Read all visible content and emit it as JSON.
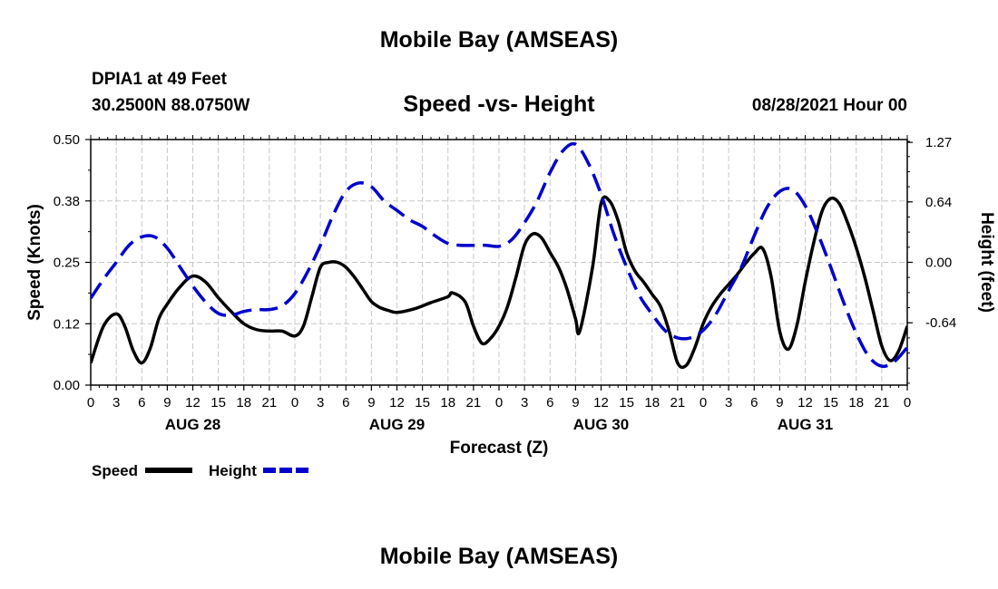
{
  "header": {
    "title": "Mobile Bay (AMSEAS)",
    "station": "DPIA1 at 49 Feet",
    "coordinates": "30.2500N  88.0750W",
    "datetime": "08/28/2021 Hour 00"
  },
  "footer": {
    "title": "Mobile Bay (AMSEAS)"
  },
  "chart_data": {
    "type": "line",
    "title": "Speed -vs- Height",
    "xlabel": "Forecast (Z)",
    "ylabel": "Speed (Knots)",
    "y2label": "Height (feet)",
    "xlim": [
      0,
      96
    ],
    "ylim": [
      0,
      0.5
    ],
    "y2lim": [
      -1.3,
      1.3
    ],
    "yticks": [
      "0.00",
      "0.12",
      "0.25",
      "0.38",
      "0.50"
    ],
    "y2ticks": [
      "-0.64",
      "0.00",
      "0.64",
      "1.27"
    ],
    "xtick_labels": [
      "0",
      "3",
      "6",
      "9",
      "12",
      "15",
      "18",
      "21",
      "0",
      "3",
      "6",
      "9",
      "12",
      "15",
      "18",
      "21",
      "0",
      "3",
      "6",
      "9",
      "12",
      "15",
      "18",
      "21",
      "0",
      "3",
      "6",
      "9",
      "12",
      "15",
      "18",
      "21",
      "0"
    ],
    "day_labels": [
      "AUG 28",
      "AUG 29",
      "AUG 30",
      "AUG 31"
    ],
    "grid": true,
    "legend": {
      "placement": "bottom-left",
      "entries": [
        "Speed",
        "Height"
      ]
    },
    "series": [
      {
        "name": "Speed",
        "axis": "left",
        "color": "#000000",
        "style": "solid",
        "x": [
          0,
          1.5,
          3,
          4,
          5,
          6,
          7,
          8,
          9,
          10.5,
          12,
          13.5,
          15,
          16.5,
          18,
          19.5,
          21,
          22.5,
          24,
          25,
          26,
          27,
          28,
          29,
          30,
          31,
          32,
          33,
          34,
          35,
          36,
          38,
          40,
          42,
          42.5,
          44,
          45,
          46,
          47,
          48,
          49,
          50,
          51,
          52,
          53,
          54,
          55,
          56,
          57,
          57.5,
          59,
          60,
          61,
          62,
          63,
          64,
          65,
          66,
          67,
          68,
          69,
          70,
          71,
          72,
          73,
          74,
          75,
          76,
          77,
          78,
          79,
          80,
          81,
          82,
          83,
          84,
          85,
          86,
          87,
          88,
          89,
          90,
          91,
          92,
          93,
          94,
          95,
          96
        ],
        "values": [
          0.045,
          0.12,
          0.145,
          0.12,
          0.07,
          0.045,
          0.075,
          0.135,
          0.165,
          0.2,
          0.222,
          0.21,
          0.178,
          0.15,
          0.125,
          0.113,
          0.11,
          0.11,
          0.1,
          0.12,
          0.18,
          0.24,
          0.25,
          0.25,
          0.24,
          0.22,
          0.195,
          0.17,
          0.158,
          0.152,
          0.148,
          0.155,
          0.168,
          0.18,
          0.188,
          0.17,
          0.12,
          0.085,
          0.095,
          0.12,
          0.16,
          0.22,
          0.285,
          0.308,
          0.3,
          0.27,
          0.24,
          0.195,
          0.135,
          0.11,
          0.24,
          0.37,
          0.375,
          0.335,
          0.27,
          0.232,
          0.21,
          0.185,
          0.16,
          0.11,
          0.045,
          0.04,
          0.075,
          0.125,
          0.16,
          0.185,
          0.205,
          0.225,
          0.248,
          0.268,
          0.278,
          0.22,
          0.11,
          0.073,
          0.12,
          0.21,
          0.29,
          0.355,
          0.38,
          0.37,
          0.33,
          0.28,
          0.22,
          0.15,
          0.08,
          0.05,
          0.07,
          0.12
        ]
      },
      {
        "name": "Height",
        "axis": "right",
        "color": "#0000cc",
        "style": "dashed",
        "x": [
          0,
          1.5,
          3,
          4.5,
          6,
          7.5,
          9,
          10.5,
          12,
          13.5,
          15,
          16.5,
          18,
          19.5,
          21,
          22.5,
          24,
          25.5,
          27,
          28.5,
          30,
          31.5,
          33,
          34.5,
          36,
          37.5,
          39,
          40.5,
          42,
          43.5,
          45,
          46.5,
          48,
          49.5,
          51,
          52.5,
          54,
          55.5,
          57,
          58.5,
          60,
          61.5,
          63,
          64.5,
          66,
          67.5,
          69,
          70.5,
          72,
          73.5,
          75,
          76.5,
          78,
          79.5,
          81,
          82.5,
          84,
          85.5,
          87,
          88.5,
          90,
          91.5,
          93,
          94.5,
          96
        ],
        "values": [
          -0.38,
          -0.18,
          0.0,
          0.18,
          0.27,
          0.27,
          0.15,
          -0.05,
          -0.25,
          -0.42,
          -0.54,
          -0.56,
          -0.52,
          -0.5,
          -0.5,
          -0.46,
          -0.33,
          -0.1,
          0.18,
          0.5,
          0.75,
          0.84,
          0.8,
          0.65,
          0.55,
          0.45,
          0.38,
          0.28,
          0.2,
          0.18,
          0.18,
          0.18,
          0.17,
          0.24,
          0.42,
          0.65,
          0.95,
          1.18,
          1.25,
          1.05,
          0.72,
          0.3,
          -0.05,
          -0.35,
          -0.55,
          -0.72,
          -0.8,
          -0.8,
          -0.72,
          -0.55,
          -0.3,
          -0.05,
          0.28,
          0.58,
          0.75,
          0.77,
          0.6,
          0.3,
          -0.05,
          -0.42,
          -0.75,
          -1.0,
          -1.1,
          -1.05,
          -0.9
        ]
      }
    ]
  }
}
